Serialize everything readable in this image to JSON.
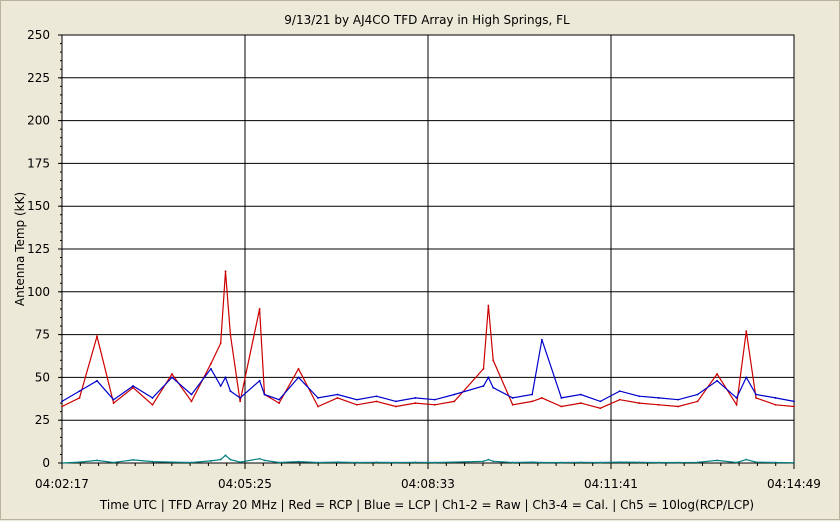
{
  "chart_data": {
    "type": "line",
    "title": "9/13/21  by  AJ4CO TFD Array  in  High Springs, FL",
    "ylabel": "Antenna Temp (kK)",
    "xlabel": "Time UTC | TFD Array 20 MHz | Red = RCP | Blue = LCP | Ch1-2 = Raw | Ch3-4 = Cal. | Ch5 = 10log(RCP/LCP)",
    "ylim": [
      0,
      250
    ],
    "y_ticks": [
      "250",
      "225",
      "200",
      "175",
      "150",
      "125",
      "100",
      "75",
      "50",
      "25",
      "0"
    ],
    "x_ticks": [
      "04:02:17",
      "04:05:25",
      "04:08:33",
      "04:11:41",
      "04:14:49"
    ],
    "grid": true,
    "series": [
      {
        "name": "Red = RCP",
        "color": "#cc0000",
        "x": [
          "04:02:17",
          "04:02:35",
          "04:02:53",
          "04:03:10",
          "04:03:30",
          "04:03:50",
          "04:04:10",
          "04:04:30",
          "04:04:50",
          "04:05:00",
          "04:05:05",
          "04:05:10",
          "04:05:20",
          "04:05:40",
          "04:05:45",
          "04:06:00",
          "04:06:20",
          "04:06:40",
          "04:07:00",
          "04:07:20",
          "04:07:40",
          "04:08:00",
          "04:08:20",
          "04:08:40",
          "04:09:00",
          "04:09:30",
          "04:09:35",
          "04:09:40",
          "04:10:00",
          "04:10:20",
          "04:10:30",
          "04:10:50",
          "04:11:10",
          "04:11:30",
          "04:11:50",
          "04:12:10",
          "04:12:30",
          "04:12:50",
          "04:13:10",
          "04:13:30",
          "04:13:50",
          "04:14:00",
          "04:14:10",
          "04:14:30",
          "04:14:49"
        ],
        "values": [
          33,
          38,
          74,
          35,
          44,
          34,
          52,
          36,
          58,
          70,
          112,
          75,
          36,
          90,
          40,
          35,
          55,
          33,
          38,
          34,
          36,
          33,
          35,
          34,
          36,
          55,
          92,
          60,
          34,
          36,
          38,
          33,
          35,
          32,
          37,
          35,
          34,
          33,
          36,
          52,
          34,
          77,
          38,
          34,
          33
        ]
      },
      {
        "name": "Blue = LCP",
        "color": "#0000cc",
        "x": [
          "04:02:17",
          "04:02:35",
          "04:02:53",
          "04:03:10",
          "04:03:30",
          "04:03:50",
          "04:04:10",
          "04:04:30",
          "04:04:50",
          "04:05:00",
          "04:05:05",
          "04:05:10",
          "04:05:20",
          "04:05:40",
          "04:05:45",
          "04:06:00",
          "04:06:20",
          "04:06:40",
          "04:07:00",
          "04:07:20",
          "04:07:40",
          "04:08:00",
          "04:08:20",
          "04:08:40",
          "04:09:00",
          "04:09:30",
          "04:09:35",
          "04:09:40",
          "04:10:00",
          "04:10:20",
          "04:10:30",
          "04:10:50",
          "04:11:10",
          "04:11:30",
          "04:11:50",
          "04:12:10",
          "04:12:30",
          "04:12:50",
          "04:13:10",
          "04:13:30",
          "04:13:50",
          "04:14:00",
          "04:14:10",
          "04:14:30",
          "04:14:49"
        ],
        "values": [
          36,
          42,
          48,
          37,
          45,
          38,
          50,
          40,
          55,
          45,
          50,
          42,
          38,
          48,
          40,
          37,
          50,
          38,
          40,
          37,
          39,
          36,
          38,
          37,
          40,
          45,
          50,
          44,
          38,
          40,
          72,
          38,
          40,
          36,
          42,
          39,
          38,
          37,
          40,
          48,
          38,
          50,
          40,
          38,
          36
        ]
      },
      {
        "name": "Ch5 = 10log(RCP/LCP)",
        "color": "#008080",
        "x": [
          "04:02:17",
          "04:02:35",
          "04:02:53",
          "04:03:10",
          "04:03:30",
          "04:03:50",
          "04:04:10",
          "04:04:30",
          "04:04:50",
          "04:05:00",
          "04:05:05",
          "04:05:10",
          "04:05:20",
          "04:05:40",
          "04:05:45",
          "04:06:00",
          "04:06:20",
          "04:06:40",
          "04:07:00",
          "04:07:20",
          "04:07:40",
          "04:08:00",
          "04:08:20",
          "04:08:40",
          "04:09:00",
          "04:09:30",
          "04:09:35",
          "04:09:40",
          "04:10:00",
          "04:10:20",
          "04:10:30",
          "04:10:50",
          "04:11:10",
          "04:11:30",
          "04:11:50",
          "04:12:10",
          "04:12:30",
          "04:12:50",
          "04:13:10",
          "04:13:30",
          "04:13:50",
          "04:14:00",
          "04:14:10",
          "04:14:30",
          "04:14:49"
        ],
        "values": [
          0,
          0.5,
          1.5,
          0.3,
          1.8,
          0.8,
          0.5,
          0.3,
          1.2,
          2,
          4.5,
          2,
          0.5,
          2.5,
          1.5,
          0.3,
          0.8,
          0.3,
          0.5,
          0.3,
          0.4,
          0.3,
          0.4,
          0.3,
          0.5,
          1,
          2,
          1,
          0.3,
          0.5,
          0.3,
          0.3,
          0.4,
          0.3,
          0.5,
          0.4,
          0.3,
          0.3,
          0.4,
          1.5,
          0.3,
          2,
          0.5,
          0.3,
          0.2
        ]
      }
    ]
  }
}
